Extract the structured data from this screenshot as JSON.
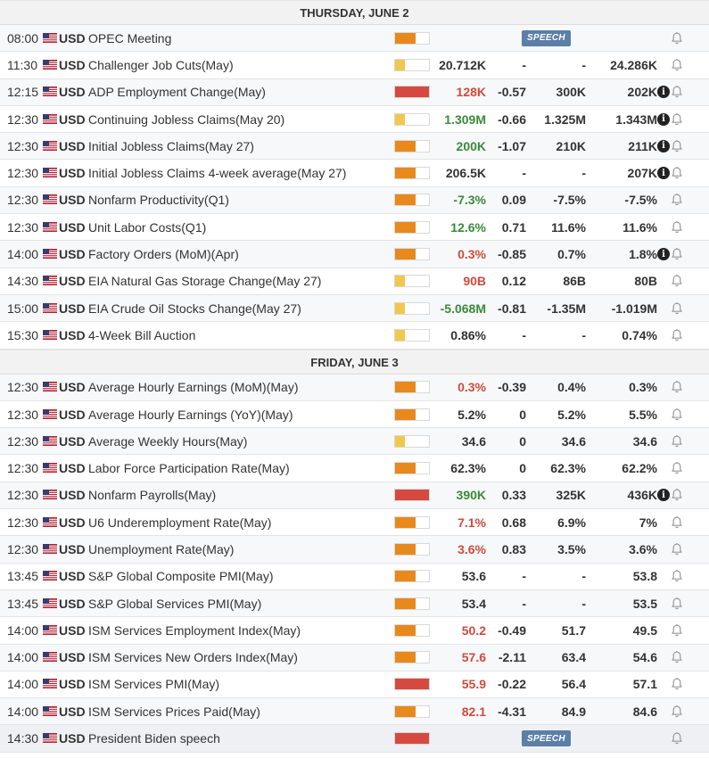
{
  "colors": {
    "high": "#d6493f",
    "med": "#e8891c",
    "low": "#f1c84b",
    "positive": "#3a8a3a",
    "negative": "#d04b3b",
    "neutral": "#333333",
    "speech_badge": "#5b7fa6"
  },
  "icons": {
    "flag": "us-flag-icon",
    "bell": "bell-icon",
    "info": "info-icon"
  },
  "days": [
    {
      "header": "THURSDAY, JUNE 2",
      "events": [
        {
          "time": "08:00",
          "currency": "USD",
          "name": "OPEC Meeting",
          "impact": "med",
          "actual": "",
          "deviation": "",
          "consensus": "",
          "previous": "",
          "info": false,
          "badge": "SPEECH"
        },
        {
          "time": "11:30",
          "currency": "USD",
          "name": "Challenger Job Cuts(May)",
          "impact": "low",
          "actual": "20.712K",
          "actual_class": "neu",
          "deviation": "-",
          "consensus": "-",
          "previous": "24.286K",
          "info": false
        },
        {
          "time": "12:15",
          "currency": "USD",
          "name": "ADP Employment Change(May)",
          "impact": "high",
          "actual": "128K",
          "actual_class": "neg",
          "deviation": "-0.57",
          "consensus": "300K",
          "previous": "202K",
          "info": true
        },
        {
          "time": "12:30",
          "currency": "USD",
          "name": "Continuing Jobless Claims(May 20)",
          "impact": "low",
          "actual": "1.309M",
          "actual_class": "pos",
          "deviation": "-0.66",
          "consensus": "1.325M",
          "previous": "1.343M",
          "info": true
        },
        {
          "time": "12:30",
          "currency": "USD",
          "name": "Initial Jobless Claims(May 27)",
          "impact": "med",
          "actual": "200K",
          "actual_class": "pos",
          "deviation": "-1.07",
          "consensus": "210K",
          "previous": "211K",
          "info": true
        },
        {
          "time": "12:30",
          "currency": "USD",
          "name": "Initial Jobless Claims 4-week average(May 27)",
          "impact": "med",
          "actual": "206.5K",
          "actual_class": "neu",
          "deviation": "-",
          "consensus": "-",
          "previous": "207K",
          "info": true
        },
        {
          "time": "12:30",
          "currency": "USD",
          "name": "Nonfarm Productivity(Q1)",
          "impact": "med",
          "actual": "-7.3%",
          "actual_class": "pos",
          "deviation": "0.09",
          "consensus": "-7.5%",
          "previous": "-7.5%",
          "info": false
        },
        {
          "time": "12:30",
          "currency": "USD",
          "name": "Unit Labor Costs(Q1)",
          "impact": "med",
          "actual": "12.6%",
          "actual_class": "pos",
          "deviation": "0.71",
          "consensus": "11.6%",
          "previous": "11.6%",
          "info": false
        },
        {
          "time": "14:00",
          "currency": "USD",
          "name": "Factory Orders (MoM)(Apr)",
          "impact": "med",
          "actual": "0.3%",
          "actual_class": "neg",
          "deviation": "-0.85",
          "consensus": "0.7%",
          "previous": "1.8%",
          "info": true
        },
        {
          "time": "14:30",
          "currency": "USD",
          "name": "EIA Natural Gas Storage Change(May 27)",
          "impact": "low",
          "actual": "90B",
          "actual_class": "neg",
          "deviation": "0.12",
          "consensus": "86B",
          "previous": "80B",
          "info": false
        },
        {
          "time": "15:00",
          "currency": "USD",
          "name": "EIA Crude Oil Stocks Change(May 27)",
          "impact": "low",
          "actual": "-5.068M",
          "actual_class": "pos",
          "deviation": "-0.81",
          "consensus": "-1.35M",
          "previous": "-1.019M",
          "info": false
        },
        {
          "time": "15:30",
          "currency": "USD",
          "name": "4-Week Bill Auction",
          "impact": "low",
          "actual": "0.86%",
          "actual_class": "neu",
          "deviation": "-",
          "consensus": "-",
          "previous": "0.74%",
          "info": false
        }
      ]
    },
    {
      "header": "FRIDAY, JUNE 3",
      "events": [
        {
          "time": "12:30",
          "currency": "USD",
          "name": "Average Hourly Earnings (MoM)(May)",
          "impact": "med",
          "actual": "0.3%",
          "actual_class": "neg",
          "deviation": "-0.39",
          "consensus": "0.4%",
          "previous": "0.3%",
          "info": false
        },
        {
          "time": "12:30",
          "currency": "USD",
          "name": "Average Hourly Earnings (YoY)(May)",
          "impact": "med",
          "actual": "5.2%",
          "actual_class": "neu",
          "deviation": "0",
          "consensus": "5.2%",
          "previous": "5.5%",
          "info": false
        },
        {
          "time": "12:30",
          "currency": "USD",
          "name": "Average Weekly Hours(May)",
          "impact": "low",
          "actual": "34.6",
          "actual_class": "neu",
          "deviation": "0",
          "consensus": "34.6",
          "previous": "34.6",
          "info": false
        },
        {
          "time": "12:30",
          "currency": "USD",
          "name": "Labor Force Participation Rate(May)",
          "impact": "med",
          "actual": "62.3%",
          "actual_class": "neu",
          "deviation": "0",
          "consensus": "62.3%",
          "previous": "62.2%",
          "info": false
        },
        {
          "time": "12:30",
          "currency": "USD",
          "name": "Nonfarm Payrolls(May)",
          "impact": "high",
          "actual": "390K",
          "actual_class": "pos",
          "deviation": "0.33",
          "consensus": "325K",
          "previous": "436K",
          "info": true
        },
        {
          "time": "12:30",
          "currency": "USD",
          "name": "U6 Underemployment Rate(May)",
          "impact": "med",
          "actual": "7.1%",
          "actual_class": "neg",
          "deviation": "0.68",
          "consensus": "6.9%",
          "previous": "7%",
          "info": false
        },
        {
          "time": "12:30",
          "currency": "USD",
          "name": "Unemployment Rate(May)",
          "impact": "med",
          "actual": "3.6%",
          "actual_class": "neg",
          "deviation": "0.83",
          "consensus": "3.5%",
          "previous": "3.6%",
          "info": false
        },
        {
          "time": "13:45",
          "currency": "USD",
          "name": "S&P Global Composite PMI(May)",
          "impact": "med",
          "actual": "53.6",
          "actual_class": "neu",
          "deviation": "-",
          "consensus": "-",
          "previous": "53.8",
          "info": false
        },
        {
          "time": "13:45",
          "currency": "USD",
          "name": "S&P Global Services PMI(May)",
          "impact": "med",
          "actual": "53.4",
          "actual_class": "neu",
          "deviation": "-",
          "consensus": "-",
          "previous": "53.5",
          "info": false
        },
        {
          "time": "14:00",
          "currency": "USD",
          "name": "ISM Services Employment Index(May)",
          "impact": "med",
          "actual": "50.2",
          "actual_class": "neg",
          "deviation": "-0.49",
          "consensus": "51.7",
          "previous": "49.5",
          "info": false
        },
        {
          "time": "14:00",
          "currency": "USD",
          "name": "ISM Services New Orders Index(May)",
          "impact": "med",
          "actual": "57.6",
          "actual_class": "neg",
          "deviation": "-2.11",
          "consensus": "63.4",
          "previous": "54.6",
          "info": false
        },
        {
          "time": "14:00",
          "currency": "USD",
          "name": "ISM Services PMI(May)",
          "impact": "high",
          "actual": "55.9",
          "actual_class": "neg",
          "deviation": "-0.22",
          "consensus": "56.4",
          "previous": "57.1",
          "info": false
        },
        {
          "time": "14:00",
          "currency": "USD",
          "name": "ISM Services Prices Paid(May)",
          "impact": "med",
          "actual": "82.1",
          "actual_class": "neg",
          "deviation": "-4.31",
          "consensus": "84.9",
          "previous": "84.6",
          "info": false
        },
        {
          "time": "14:30",
          "currency": "USD",
          "name": "President Biden speech",
          "impact": "high",
          "actual": "",
          "deviation": "",
          "consensus": "",
          "previous": "",
          "info": false,
          "badge": "SPEECH"
        }
      ]
    }
  ]
}
